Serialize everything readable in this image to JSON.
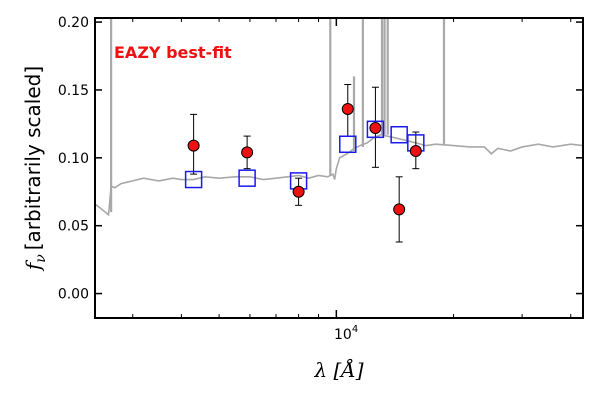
{
  "chart_data": {
    "type": "scatter",
    "xscale": "log",
    "xlim": [
      2400,
      43000
    ],
    "ylim": [
      -0.018,
      0.203
    ],
    "xlabel": "λ [Å]",
    "ylabel_text": "[arbitrarily scaled]",
    "ylabel_symbol": "f",
    "ylabel_sub": "ν",
    "y_ticks": [
      0.0,
      0.05,
      0.1,
      0.15,
      0.2
    ],
    "y_tick_labels": [
      "0.00",
      "0.05",
      "0.10",
      "0.15",
      "0.20"
    ],
    "x_major_ticks": [
      10000
    ],
    "x_major_tick_base": "10",
    "x_major_tick_exp": "4",
    "x_minor_ticks": [
      3000,
      4000,
      5000,
      6000,
      7000,
      8000,
      9000,
      20000,
      30000,
      40000
    ],
    "grid": false,
    "annotation": "EAZY best-fit",
    "colors": {
      "model_line": "#a8a8a8",
      "observed_fill": "#ee1111",
      "model_box": "#1a1aee",
      "annotation": "#ee1111",
      "errorbar": "#000000"
    },
    "observed": [
      {
        "x": 4300,
        "y": 0.109,
        "yerr_low": 0.021,
        "yerr_high": 0.023
      },
      {
        "x": 5900,
        "y": 0.104,
        "yerr_low": 0.012,
        "yerr_high": 0.012
      },
      {
        "x": 8000,
        "y": 0.075,
        "yerr_low": 0.01,
        "yerr_high": 0.01
      },
      {
        "x": 10700,
        "y": 0.136,
        "yerr_low": 0.02,
        "yerr_high": 0.018
      },
      {
        "x": 12600,
        "y": 0.122,
        "yerr_low": 0.029,
        "yerr_high": 0.03
      },
      {
        "x": 14500,
        "y": 0.062,
        "yerr_low": 0.024,
        "yerr_high": 0.024
      },
      {
        "x": 16000,
        "y": 0.105,
        "yerr_low": 0.013,
        "yerr_high": 0.014
      }
    ],
    "model_photometry": [
      {
        "x": 4300,
        "y": 0.084
      },
      {
        "x": 5900,
        "y": 0.085
      },
      {
        "x": 8000,
        "y": 0.083
      },
      {
        "x": 10700,
        "y": 0.11
      },
      {
        "x": 12600,
        "y": 0.121
      },
      {
        "x": 14500,
        "y": 0.117
      },
      {
        "x": 16000,
        "y": 0.111
      }
    ],
    "model_spectrum": {
      "x": [
        2400,
        2500,
        2600,
        2640,
        2700,
        2800,
        3000,
        3200,
        3500,
        3800,
        4000,
        4300,
        4600,
        5000,
        5500,
        6000,
        6500,
        7000,
        7500,
        8000,
        8500,
        9000,
        9500,
        9800,
        9900,
        10000,
        10200,
        10500,
        10800,
        11000,
        11500,
        12000,
        12500,
        13000,
        14000,
        15000,
        16000,
        17000,
        18000,
        20000,
        22000,
        24000,
        25000,
        26000,
        28000,
        30000,
        33000,
        36000,
        40000,
        43000
      ],
      "y": [
        0.066,
        0.062,
        0.058,
        0.079,
        0.078,
        0.081,
        0.083,
        0.085,
        0.083,
        0.085,
        0.084,
        0.084,
        0.086,
        0.085,
        0.086,
        0.086,
        0.084,
        0.085,
        0.086,
        0.087,
        0.085,
        0.087,
        0.086,
        0.088,
        0.084,
        0.092,
        0.1,
        0.102,
        0.104,
        0.106,
        0.109,
        0.111,
        0.115,
        0.117,
        0.115,
        0.113,
        0.111,
        0.109,
        0.11,
        0.109,
        0.108,
        0.108,
        0.103,
        0.107,
        0.105,
        0.108,
        0.11,
        0.108,
        0.11,
        0.109
      ]
    },
    "model_spikes": [
      {
        "x": 2640,
        "y_base": 0.06,
        "y_top": 0.203
      },
      {
        "x": 9650,
        "y_base": 0.087,
        "y_top": 0.203
      },
      {
        "x": 11100,
        "y_base": 0.105,
        "y_top": 0.16
      },
      {
        "x": 11700,
        "y_base": 0.108,
        "y_top": 0.203
      },
      {
        "x": 13100,
        "y_base": 0.117,
        "y_top": 0.203
      },
      {
        "x": 13300,
        "y_base": 0.117,
        "y_top": 0.203
      },
      {
        "x": 13550,
        "y_base": 0.117,
        "y_top": 0.203
      },
      {
        "x": 18900,
        "y_base": 0.109,
        "y_top": 0.203
      }
    ]
  }
}
